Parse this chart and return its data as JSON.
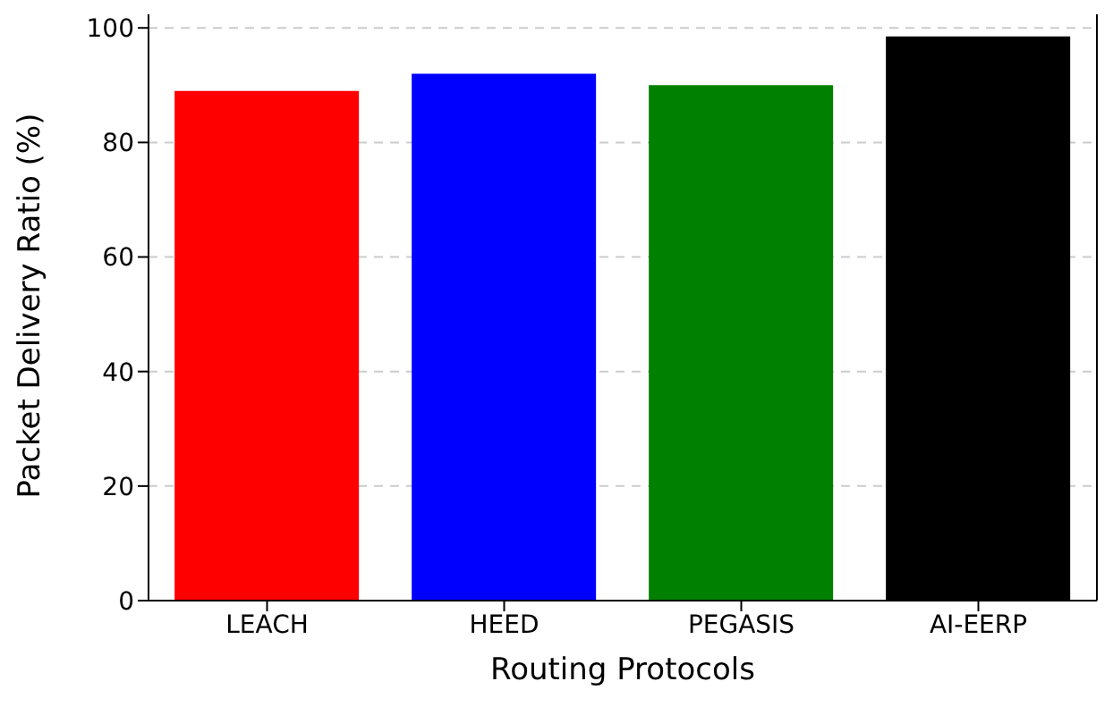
{
  "chart_data": {
    "type": "bar",
    "xlabel": "Routing Protocols",
    "ylabel": "Packet Delivery Ratio (%)",
    "categories": [
      "LEACH",
      "HEED",
      "PEGASIS",
      "AI-EERP"
    ],
    "values": [
      89,
      92,
      90,
      98.5
    ],
    "colors": [
      "#ff0000",
      "#0000ff",
      "#008000",
      "#000000"
    ],
    "ylim": [
      0,
      103
    ],
    "yticks": [
      0,
      20,
      40,
      60,
      80,
      100
    ],
    "grid": "y"
  }
}
